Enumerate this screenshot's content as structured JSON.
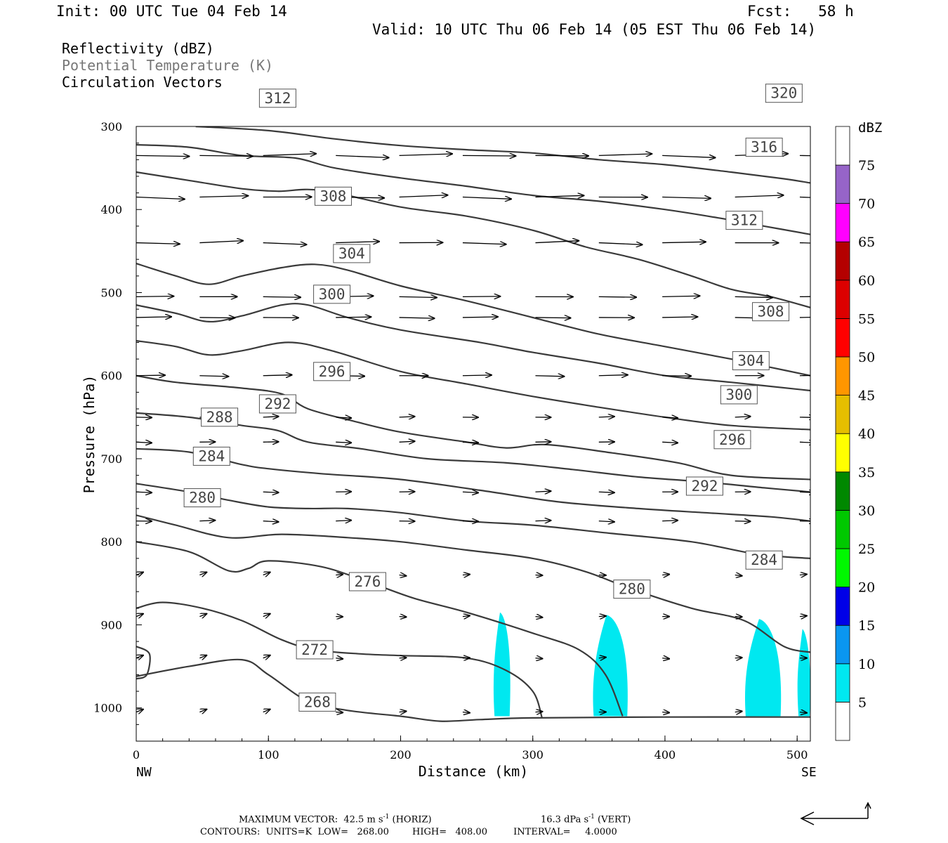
{
  "header": {
    "init": "Init: 00 UTC Tue 04 Feb 14",
    "fcst": "Fcst:   58 h",
    "valid": "Valid: 10 UTC Thu 06 Feb 14 (05 EST Thu 06 Feb 14)"
  },
  "legend_lines": [
    {
      "text": "Reflectivity (dBZ)",
      "color": "#000000"
    },
    {
      "text": "Potential Temperature (K)",
      "color": "#777777"
    },
    {
      "text": "Circulation Vectors",
      "color": "#000000"
    }
  ],
  "footer": {
    "line1_a": "MAXIMUM VECTOR:  42.5 m s",
    "line1_b": "-1",
    "line1_c": " (HORIZ)",
    "line1_d": "16.3 dPa s",
    "line1_e": "-1",
    "line1_f": " (VERT)",
    "line2": "CONTOURS:  UNITS=K  LOW=   268.00        HIGH=   408.00         INTERVAL=     4.0000"
  },
  "chart_data": {
    "type": "cross-section",
    "xlabel": "Distance (km)",
    "ylabel": "Pressure (hPa)",
    "xlim": [
      0,
      510
    ],
    "ylim": [
      1040,
      300
    ],
    "x_ticks": [
      "0",
      "100",
      "200",
      "300",
      "400",
      "500"
    ],
    "x_tick_values": [
      0,
      100,
      200,
      300,
      400,
      500
    ],
    "y_ticks": [
      "300",
      "400",
      "500",
      "600",
      "700",
      "800",
      "900",
      "1000"
    ],
    "y_tick_values": [
      300,
      400,
      500,
      600,
      700,
      800,
      900,
      1000
    ],
    "x_end_labels": {
      "left": "NW",
      "right": "SE"
    },
    "colorbar": {
      "unit_label": "dBZ",
      "levels": [
        "5",
        "10",
        "15",
        "20",
        "25",
        "30",
        "35",
        "40",
        "45",
        "50",
        "55",
        "60",
        "65",
        "70",
        "75"
      ],
      "colors": [
        "#ffffff",
        "#00e8f0",
        "#0a96f0",
        "#0000e8",
        "#00f800",
        "#00c800",
        "#008800",
        "#ffff00",
        "#e6be00",
        "#ff9600",
        "#ff0000",
        "#dc0000",
        "#b40000",
        "#ff00ff",
        "#9664c8",
        "#ffffff"
      ]
    },
    "isentropes": [
      {
        "label": "268",
        "label_at": [
          137,
          993
        ],
        "points": [
          [
            0,
            962
          ],
          [
            40,
            950
          ],
          [
            80,
            942
          ],
          [
            100,
            960
          ],
          [
            130,
            992
          ],
          [
            160,
            1003
          ],
          [
            200,
            1010
          ],
          [
            230,
            1016
          ],
          [
            260,
            1014
          ],
          [
            300,
            1012
          ],
          [
            400,
            1011
          ],
          [
            510,
            1011
          ]
        ]
      },
      {
        "label": "272",
        "label_at": [
          135,
          930
        ],
        "points": [
          [
            0,
            880
          ],
          [
            20,
            873
          ],
          [
            50,
            880
          ],
          [
            80,
            895
          ],
          [
            110,
            918
          ],
          [
            135,
            930
          ],
          [
            170,
            935
          ],
          [
            200,
            937
          ],
          [
            250,
            940
          ],
          [
            280,
            955
          ],
          [
            300,
            980
          ],
          [
            307,
            1012
          ]
        ]
      },
      {
        "label": "276",
        "label_at": [
          175,
          848
        ],
        "points": [
          [
            0,
            800
          ],
          [
            40,
            812
          ],
          [
            70,
            835
          ],
          [
            85,
            832
          ],
          [
            100,
            823
          ],
          [
            140,
            830
          ],
          [
            175,
            848
          ],
          [
            210,
            868
          ],
          [
            250,
            885
          ],
          [
            300,
            910
          ],
          [
            335,
            930
          ],
          [
            355,
            960
          ],
          [
            368,
            1010
          ]
        ]
      },
      {
        "label": "280",
        "label_at": [
          50,
          747
        ],
        "points": [
          [
            0,
            768
          ],
          [
            30,
            780
          ],
          [
            70,
            795
          ],
          [
            110,
            791
          ],
          [
            160,
            795
          ],
          [
            200,
            800
          ],
          [
            250,
            810
          ],
          [
            300,
            820
          ],
          [
            340,
            836
          ],
          [
            375,
            857
          ],
          [
            420,
            880
          ],
          [
            460,
            895
          ],
          [
            490,
            926
          ],
          [
            510,
            933
          ]
        ]
      },
      {
        "label": "280",
        "label_at": [
          375,
          857
        ],
        "points": []
      },
      {
        "label": "284",
        "label_at": [
          57,
          697
        ],
        "points": [
          [
            0,
            730
          ],
          [
            40,
            740
          ],
          [
            70,
            750
          ],
          [
            100,
            758
          ],
          [
            130,
            760
          ],
          [
            160,
            760
          ],
          [
            200,
            765
          ],
          [
            250,
            775
          ],
          [
            300,
            780
          ],
          [
            360,
            790
          ],
          [
            420,
            800
          ],
          [
            470,
            815
          ],
          [
            510,
            820
          ]
        ]
      },
      {
        "label": "284",
        "label_at": [
          475,
          822
        ],
        "points": []
      },
      {
        "label": "288",
        "label_at": [
          63,
          650
        ],
        "points": [
          [
            0,
            688
          ],
          [
            40,
            692
          ],
          [
            80,
            707
          ],
          [
            100,
            712
          ],
          [
            140,
            718
          ],
          [
            200,
            725
          ],
          [
            260,
            738
          ],
          [
            320,
            752
          ],
          [
            380,
            760
          ],
          [
            430,
            765
          ],
          [
            480,
            770
          ],
          [
            510,
            775
          ]
        ]
      },
      {
        "label": "292",
        "label_at": [
          107,
          634
        ],
        "points": [
          [
            0,
            645
          ],
          [
            40,
            650
          ],
          [
            80,
            660
          ],
          [
            107,
            666
          ],
          [
            130,
            680
          ],
          [
            170,
            688
          ],
          [
            220,
            700
          ],
          [
            280,
            705
          ],
          [
            330,
            713
          ],
          [
            380,
            722
          ],
          [
            430,
            728
          ],
          [
            475,
            735
          ],
          [
            510,
            740
          ]
        ]
      },
      {
        "label": "292",
        "label_at": [
          430,
          733
        ],
        "points": []
      },
      {
        "label": "296",
        "label_at": [
          148,
          595
        ],
        "points": [
          [
            0,
            600
          ],
          [
            30,
            608
          ],
          [
            80,
            615
          ],
          [
            110,
            622
          ],
          [
            130,
            640
          ],
          [
            165,
            655
          ],
          [
            200,
            668
          ],
          [
            250,
            680
          ],
          [
            280,
            687
          ],
          [
            310,
            683
          ],
          [
            360,
            693
          ],
          [
            410,
            705
          ],
          [
            450,
            720
          ],
          [
            510,
            725
          ]
        ]
      },
      {
        "label": "296",
        "label_at": [
          451,
          677
        ],
        "points": []
      },
      {
        "label": "300",
        "label_at": [
          148,
          502
        ],
        "points": [
          [
            0,
            558
          ],
          [
            30,
            565
          ],
          [
            55,
            575
          ],
          [
            80,
            570
          ],
          [
            115,
            560
          ],
          [
            148,
            570
          ],
          [
            200,
            595
          ],
          [
            250,
            610
          ],
          [
            300,
            625
          ],
          [
            350,
            638
          ],
          [
            400,
            650
          ],
          [
            450,
            660
          ],
          [
            510,
            665
          ]
        ]
      },
      {
        "label": "300",
        "label_at": [
          456,
          623
        ],
        "points": []
      },
      {
        "label": "304",
        "label_at": [
          163,
          453
        ],
        "points": [
          [
            0,
            515
          ],
          [
            30,
            525
          ],
          [
            55,
            535
          ],
          [
            80,
            528
          ],
          [
            110,
            515
          ],
          [
            130,
            515
          ],
          [
            160,
            530
          ],
          [
            200,
            545
          ],
          [
            260,
            560
          ],
          [
            300,
            572
          ],
          [
            350,
            585
          ],
          [
            400,
            600
          ],
          [
            450,
            608
          ],
          [
            510,
            618
          ]
        ]
      },
      {
        "label": "304",
        "label_at": [
          465,
          582
        ],
        "points": []
      },
      {
        "label": "308",
        "label_at": [
          149,
          384
        ],
        "points": [
          [
            0,
            465
          ],
          [
            30,
            480
          ],
          [
            55,
            490
          ],
          [
            80,
            480
          ],
          [
            110,
            470
          ],
          [
            135,
            466
          ],
          [
            160,
            473
          ],
          [
            200,
            492
          ],
          [
            250,
            510
          ],
          [
            300,
            530
          ],
          [
            350,
            550
          ],
          [
            400,
            565
          ],
          [
            450,
            580
          ],
          [
            480,
            590
          ],
          [
            510,
            600
          ]
        ]
      },
      {
        "label": "308",
        "label_at": [
          480,
          523
        ],
        "points": []
      },
      {
        "label": "312",
        "label_at": [
          107,
          266
        ],
        "points": [
          [
            0,
            355
          ],
          [
            40,
            365
          ],
          [
            80,
            375
          ],
          [
            107,
            378
          ],
          [
            140,
            377
          ],
          [
            200,
            397
          ],
          [
            250,
            408
          ],
          [
            300,
            425
          ],
          [
            340,
            445
          ],
          [
            380,
            460
          ],
          [
            420,
            480
          ],
          [
            450,
            496
          ],
          [
            480,
            505
          ],
          [
            510,
            518
          ]
        ]
      },
      {
        "label": "312",
        "label_at": [
          460,
          413
        ],
        "points": []
      },
      {
        "label": "316",
        "label_at": [
          475,
          325
        ],
        "points": [
          [
            0,
            322
          ],
          [
            40,
            325
          ],
          [
            80,
            335
          ],
          [
            120,
            338
          ],
          [
            150,
            350
          ],
          [
            200,
            362
          ],
          [
            250,
            372
          ],
          [
            300,
            383
          ],
          [
            350,
            390
          ],
          [
            400,
            400
          ],
          [
            440,
            410
          ],
          [
            475,
            420
          ],
          [
            510,
            430
          ]
        ]
      },
      {
        "label": "320",
        "label_at": [
          490,
          260
        ],
        "points": [
          [
            45,
            300
          ],
          [
            100,
            305
          ],
          [
            150,
            315
          ],
          [
            200,
            323
          ],
          [
            250,
            328
          ],
          [
            300,
            332
          ],
          [
            350,
            340
          ],
          [
            400,
            346
          ],
          [
            450,
            355
          ],
          [
            490,
            363
          ],
          [
            510,
            368
          ]
        ]
      }
    ],
    "reflectivity_cells": [
      {
        "value": "5-10",
        "x_range": [
          270,
          283
        ],
        "p_top": 885,
        "p_bottom": 1010
      },
      {
        "value": "5-10",
        "x_range": [
          345,
          372
        ],
        "p_top": 888,
        "p_bottom": 1010
      },
      {
        "value": "5-10",
        "x_range": [
          460,
          488
        ],
        "p_top": 893,
        "p_bottom": 1010
      },
      {
        "value": "5-10",
        "x_range": [
          500,
          510
        ],
        "p_top": 905,
        "p_bottom": 1010
      }
    ]
  }
}
